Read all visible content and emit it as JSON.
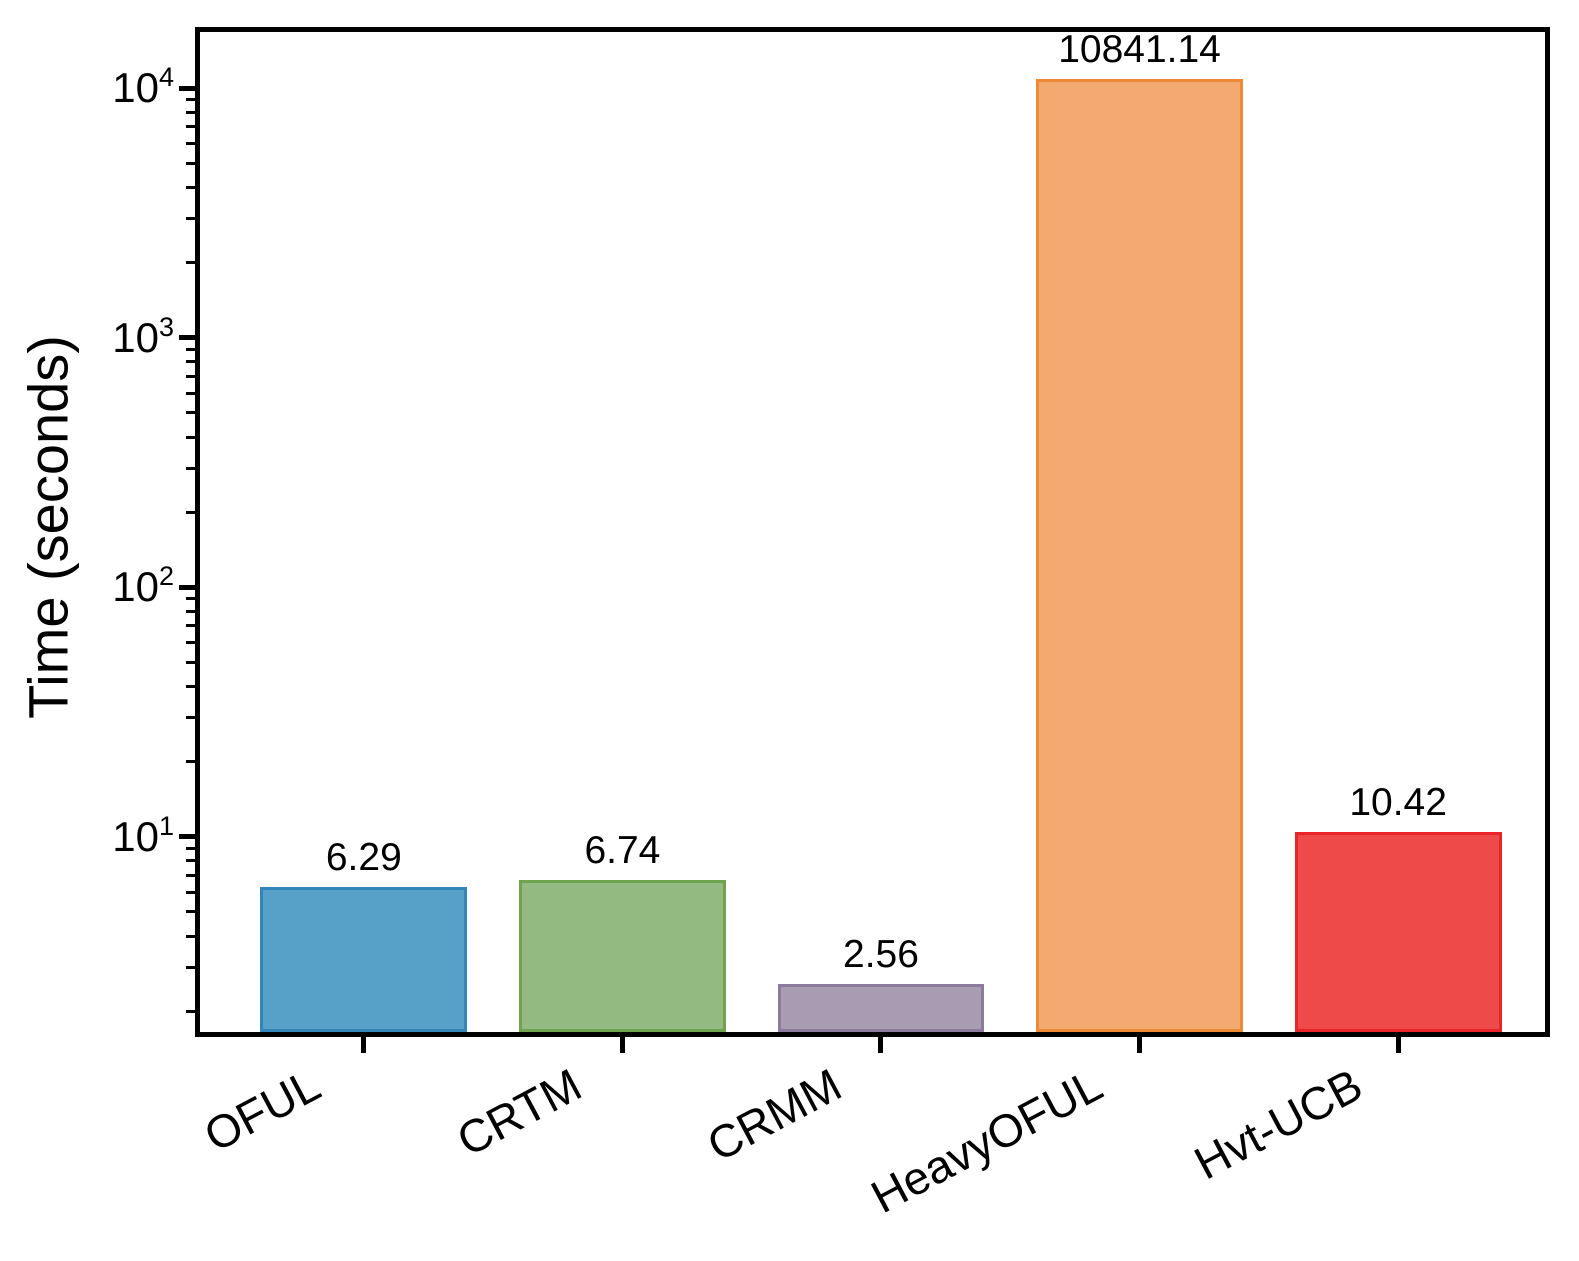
{
  "figure": {
    "background_color": "#ffffff",
    "spine_color": "#000000",
    "tick_color": "#000000",
    "text_color": "#000000"
  },
  "chart_data": {
    "type": "bar",
    "title": "",
    "xlabel": "",
    "ylabel": "Time (seconds)",
    "yscale": "log",
    "ylim": [
      1.65,
      16800
    ],
    "grid": false,
    "legend": null,
    "bar_width_ratio": 0.8,
    "categories": [
      "OFUL",
      "CRTM",
      "CRMM",
      "HeavyOFUL",
      "Hvt-UCB"
    ],
    "values": [
      6.29,
      6.74,
      2.56,
      10841.14,
      10.42
    ],
    "bars": [
      {
        "category": "OFUL",
        "value": 6.29,
        "value_label": "6.29",
        "fill": "#57A0C8",
        "edge": "#3485B8"
      },
      {
        "category": "CRTM",
        "value": 6.74,
        "value_label": "6.74",
        "fill": "#93BA80",
        "edge": "#6FA350"
      },
      {
        "category": "CRMM",
        "value": 2.56,
        "value_label": "2.56",
        "fill": "#A79CB1",
        "edge": "#8C7B9C"
      },
      {
        "category": "HeavyOFUL",
        "value": 10841.14,
        "value_label": "10841.14",
        "fill": "#F3A96F",
        "edge": "#EE8A35"
      },
      {
        "category": "Hvt-UCB",
        "value": 10.42,
        "value_label": "10.42",
        "fill": "#EE4A4A",
        "edge": "#E92529"
      }
    ],
    "y_ticks": [
      {
        "base": "10",
        "exp": 4
      },
      {
        "base": "10",
        "exp": 3
      },
      {
        "base": "10",
        "exp": 2
      },
      {
        "base": "10",
        "exp": 1
      }
    ]
  }
}
